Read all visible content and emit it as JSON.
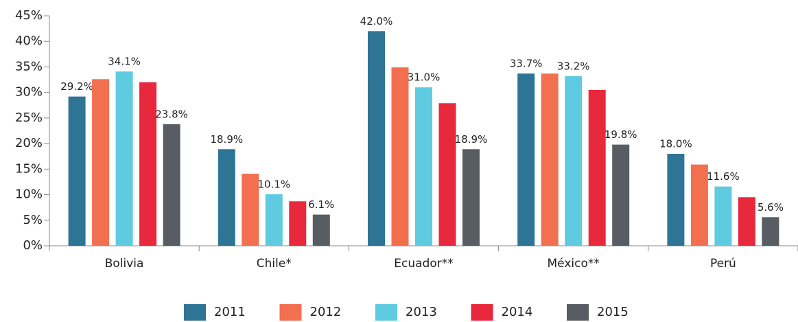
{
  "chart_data": {
    "type": "bar",
    "categories": [
      "Bolivia",
      "Chile*",
      "Ecuador**",
      "México**",
      "Perú"
    ],
    "series": [
      {
        "name": "2011",
        "color": "#2e7595",
        "values": [
          29.2,
          18.9,
          42.0,
          33.7,
          18.0
        ],
        "value_labels": [
          "29.2%",
          "18.9%",
          "42.0%",
          "33.7%",
          "18.0%"
        ]
      },
      {
        "name": "2012",
        "color": "#f26f50",
        "values": [
          32.6,
          14.1,
          34.9,
          33.7,
          15.9
        ],
        "value_labels": [
          null,
          null,
          null,
          null,
          null
        ]
      },
      {
        "name": "2013",
        "color": "#5ecbe0",
        "values": [
          34.1,
          10.1,
          31.0,
          33.2,
          11.6
        ],
        "value_labels": [
          "34.1%",
          "10.1%",
          "31.0%",
          "33.2%",
          "11.6%"
        ]
      },
      {
        "name": "2014",
        "color": "#e8283c",
        "values": [
          32.0,
          8.7,
          27.9,
          30.5,
          9.5
        ],
        "value_labels": [
          null,
          null,
          null,
          null,
          null
        ]
      },
      {
        "name": "2015",
        "color": "#585c63",
        "values": [
          23.8,
          6.1,
          18.9,
          19.8,
          5.6
        ],
        "value_labels": [
          "23.8%",
          "6.1%",
          "18.9%",
          "19.8%",
          "5.6%"
        ]
      }
    ],
    "ylim": [
      0,
      45
    ],
    "yticks": [
      {
        "value": 0,
        "label": "0%"
      },
      {
        "value": 5,
        "label": "5%"
      },
      {
        "value": 10,
        "label": "10%"
      },
      {
        "value": 15,
        "label": "15%"
      },
      {
        "value": 20,
        "label": "20%"
      },
      {
        "value": 25,
        "label": "25%"
      },
      {
        "value": 30,
        "label": "30%"
      },
      {
        "value": 35,
        "label": "35%"
      },
      {
        "value": 40,
        "label": "40%"
      },
      {
        "value": 45,
        "label": "45%"
      }
    ],
    "legend": "bottom"
  }
}
